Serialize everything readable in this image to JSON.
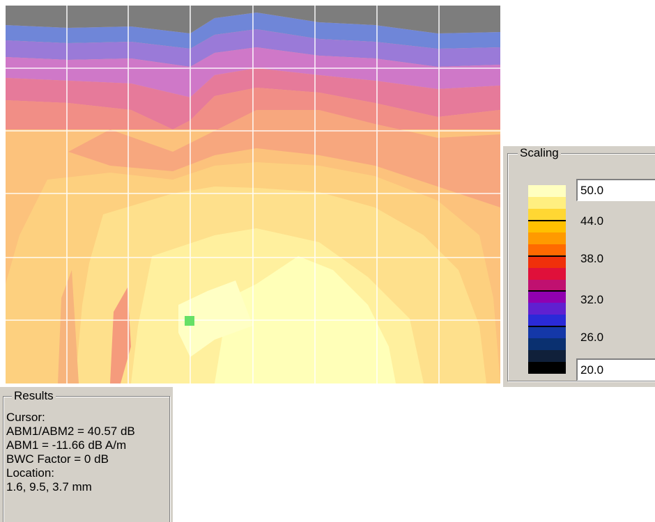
{
  "scaling": {
    "title": "Scaling",
    "max_value": "50.0",
    "min_value": "20.0",
    "labels": [
      "44.0",
      "38.0",
      "32.0",
      "26.0"
    ],
    "colors": [
      "#ffffc0",
      "#ffef80",
      "#ffd733",
      "#ffc000",
      "#ff9a00",
      "#ff6a00",
      "#f0300a",
      "#e0103a",
      "#c01070",
      "#9000b0",
      "#6020d0",
      "#2a2ad8",
      "#1438a8",
      "#0a3070",
      "#10203a",
      "#000000"
    ]
  },
  "results": {
    "title": "Results",
    "cursor_label": "Cursor:",
    "ratio_line": "ABM1/ABM2 = 40.57 dB",
    "abm1_line": "ABM1 = -11.66 dB A/m",
    "bwc_line": "BWC Factor = 0 dB",
    "location_label": "Location:",
    "location_value": "1.6, 9.5, 3.7 mm"
  }
}
